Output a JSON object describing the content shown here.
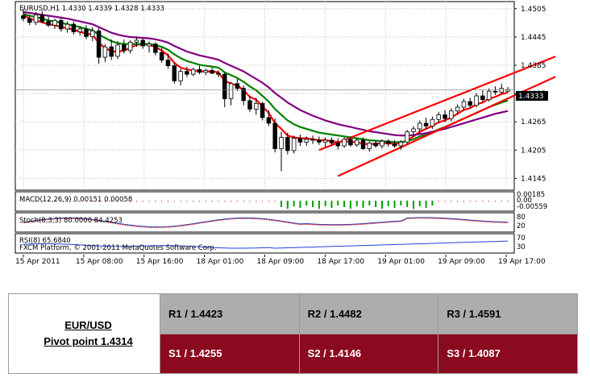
{
  "chart_data": {
    "type": "candlestick",
    "symbol_line": "EURUSD,H1  1.4330 1.4339 1.4328 1.4333",
    "price_label": "1.4333",
    "ylim": [
      1.412,
      1.452
    ],
    "y_ticks": [
      "1.4505",
      "1.4445",
      "1.4385",
      "1.4325",
      "1.4265",
      "1.4205",
      "1.4145"
    ],
    "x_ticks": [
      "15 Apr 2011",
      "15 Apr 08:00",
      "15 Apr 16:00",
      "18 Apr 01:00",
      "18 Apr 09:00",
      "18 Apr 17:00",
      "19 Apr 01:00",
      "19 Apr 09:00",
      "19 Apr 17:00"
    ],
    "candles": [
      [
        1.449,
        1.4505,
        1.4478,
        1.4484
      ],
      [
        1.4484,
        1.4492,
        1.447,
        1.4476
      ],
      [
        1.4476,
        1.4498,
        1.447,
        1.4492
      ],
      [
        1.4492,
        1.45,
        1.4474,
        1.4478
      ],
      [
        1.4478,
        1.4488,
        1.4466,
        1.447
      ],
      [
        1.447,
        1.4484,
        1.4462,
        1.448
      ],
      [
        1.448,
        1.4486,
        1.4456,
        1.4462
      ],
      [
        1.4462,
        1.4478,
        1.4454,
        1.4472
      ],
      [
        1.4472,
        1.4478,
        1.445,
        1.4456
      ],
      [
        1.4456,
        1.4468,
        1.4448,
        1.4462
      ],
      [
        1.4462,
        1.447,
        1.444,
        1.4446
      ],
      [
        1.4446,
        1.4466,
        1.4436,
        1.4458
      ],
      [
        1.4458,
        1.4464,
        1.4388,
        1.4402
      ],
      [
        1.4402,
        1.443,
        1.4392,
        1.4424
      ],
      [
        1.4424,
        1.444,
        1.4396,
        1.4404
      ],
      [
        1.4404,
        1.4436,
        1.4398,
        1.4428
      ],
      [
        1.4428,
        1.444,
        1.441,
        1.4416
      ],
      [
        1.4416,
        1.4438,
        1.441,
        1.4434
      ],
      [
        1.4434,
        1.4446,
        1.4424,
        1.4438
      ],
      [
        1.4438,
        1.4442,
        1.442,
        1.4426
      ],
      [
        1.4426,
        1.4436,
        1.4412,
        1.443
      ],
      [
        1.443,
        1.4434,
        1.4406,
        1.4412
      ],
      [
        1.4412,
        1.4422,
        1.439,
        1.4396
      ],
      [
        1.4396,
        1.441,
        1.4378,
        1.4384
      ],
      [
        1.4384,
        1.439,
        1.4346,
        1.4352
      ],
      [
        1.4352,
        1.4378,
        1.4342,
        1.4372
      ],
      [
        1.4372,
        1.4382,
        1.436,
        1.4366
      ],
      [
        1.4366,
        1.438,
        1.4362,
        1.4376
      ],
      [
        1.4376,
        1.4384,
        1.4366,
        1.437
      ],
      [
        1.437,
        1.4378,
        1.4364,
        1.4374
      ],
      [
        1.4374,
        1.438,
        1.4366,
        1.4368
      ],
      [
        1.4368,
        1.4374,
        1.436,
        1.4366
      ],
      [
        1.4366,
        1.437,
        1.4296,
        1.4314
      ],
      [
        1.4314,
        1.435,
        1.43,
        1.4346
      ],
      [
        1.4346,
        1.4356,
        1.433,
        1.4336
      ],
      [
        1.4336,
        1.4342,
        1.43,
        1.431
      ],
      [
        1.431,
        1.432,
        1.4286,
        1.4292
      ],
      [
        1.4292,
        1.4316,
        1.428,
        1.4304
      ],
      [
        1.4304,
        1.4308,
        1.4268,
        1.4274
      ],
      [
        1.4274,
        1.429,
        1.4256,
        1.4262
      ],
      [
        1.4262,
        1.4272,
        1.42,
        1.4208
      ],
      [
        1.4208,
        1.4244,
        1.416,
        1.4232
      ],
      [
        1.4232,
        1.4242,
        1.4196,
        1.4204
      ],
      [
        1.4204,
        1.4236,
        1.4198,
        1.423
      ],
      [
        1.423,
        1.4238,
        1.4214,
        1.4222
      ],
      [
        1.4222,
        1.4234,
        1.4214,
        1.4228
      ],
      [
        1.4228,
        1.4236,
        1.4218,
        1.4226
      ],
      [
        1.4226,
        1.4234,
        1.4216,
        1.4222
      ],
      [
        1.4222,
        1.4232,
        1.4212,
        1.4226
      ],
      [
        1.4226,
        1.4232,
        1.4214,
        1.422
      ],
      [
        1.422,
        1.423,
        1.4206,
        1.4214
      ],
      [
        1.4214,
        1.4232,
        1.421,
        1.4228
      ],
      [
        1.4228,
        1.4234,
        1.4212,
        1.4216
      ],
      [
        1.4216,
        1.423,
        1.4212,
        1.4226
      ],
      [
        1.4226,
        1.4232,
        1.4206,
        1.4208
      ],
      [
        1.4208,
        1.4224,
        1.4202,
        1.422
      ],
      [
        1.422,
        1.4226,
        1.421,
        1.4214
      ],
      [
        1.4214,
        1.4228,
        1.4208,
        1.4224
      ],
      [
        1.4224,
        1.4228,
        1.4212,
        1.4218
      ],
      [
        1.4218,
        1.4226,
        1.421,
        1.4214
      ],
      [
        1.4214,
        1.4226,
        1.4206,
        1.4222
      ],
      [
        1.4222,
        1.4248,
        1.4218,
        1.4244
      ],
      [
        1.4244,
        1.4256,
        1.4236,
        1.425
      ],
      [
        1.425,
        1.4268,
        1.424,
        1.4262
      ],
      [
        1.4262,
        1.4274,
        1.425,
        1.4256
      ],
      [
        1.4256,
        1.4276,
        1.425,
        1.427
      ],
      [
        1.427,
        1.4286,
        1.4262,
        1.428
      ],
      [
        1.428,
        1.429,
        1.4264,
        1.4272
      ],
      [
        1.4272,
        1.4294,
        1.4266,
        1.4288
      ],
      [
        1.4288,
        1.4302,
        1.428,
        1.4296
      ],
      [
        1.4296,
        1.4314,
        1.4288,
        1.4308
      ],
      [
        1.4308,
        1.4316,
        1.4294,
        1.43
      ],
      [
        1.43,
        1.4326,
        1.4296,
        1.432
      ],
      [
        1.432,
        1.4332,
        1.4306,
        1.4312
      ],
      [
        1.4312,
        1.4336,
        1.4308,
        1.433
      ],
      [
        1.433,
        1.434,
        1.4322,
        1.4328
      ],
      [
        1.4328,
        1.4346,
        1.4324,
        1.4336
      ],
      [
        1.433,
        1.4339,
        1.4328,
        1.4333
      ]
    ],
    "ma": [
      {
        "color": "#ff0000",
        "values": [
          1.4492,
          1.4484,
          1.448,
          1.4476,
          1.4472,
          1.447,
          1.4466,
          1.4464,
          1.446,
          1.4456,
          1.4452,
          1.445,
          1.4432,
          1.4422,
          1.4414,
          1.4414,
          1.4416,
          1.4422,
          1.4428,
          1.443,
          1.4428,
          1.4424,
          1.4416,
          1.4406,
          1.439,
          1.438,
          1.4376,
          1.4374,
          1.4372,
          1.4372,
          1.4372,
          1.437,
          1.4352,
          1.4346,
          1.4342,
          1.4332,
          1.4318,
          1.4312,
          1.4298,
          1.4284,
          1.4262,
          1.425,
          1.4236,
          1.4232,
          1.423,
          1.423,
          1.4228,
          1.4226,
          1.4226,
          1.4224,
          1.4222,
          1.4224,
          1.4222,
          1.4222,
          1.4218,
          1.4218,
          1.4218,
          1.422,
          1.422,
          1.4218,
          1.422,
          1.4226,
          1.4234,
          1.4244,
          1.425,
          1.4256,
          1.4264,
          1.4268,
          1.4274,
          1.4282,
          1.429,
          1.4294,
          1.4302,
          1.4306,
          1.4314,
          1.4318,
          1.4324,
          1.4327
        ]
      },
      {
        "color": "#008000",
        "values": [
          1.4494,
          1.449,
          1.4487,
          1.4484,
          1.448,
          1.4478,
          1.4475,
          1.4472,
          1.4469,
          1.4466,
          1.4462,
          1.4459,
          1.445,
          1.4443,
          1.4436,
          1.4432,
          1.443,
          1.443,
          1.443,
          1.443,
          1.443,
          1.4428,
          1.4424,
          1.4418,
          1.4408,
          1.44,
          1.4394,
          1.439,
          1.4386,
          1.4384,
          1.4382,
          1.438,
          1.437,
          1.4364,
          1.4358,
          1.435,
          1.434,
          1.4332,
          1.432,
          1.4308,
          1.4292,
          1.428,
          1.4268,
          1.426,
          1.4254,
          1.425,
          1.4246,
          1.4242,
          1.424,
          1.4238,
          1.4236,
          1.4234,
          1.4232,
          1.423,
          1.4228,
          1.4226,
          1.4225,
          1.4224,
          1.4223,
          1.4222,
          1.4222,
          1.4224,
          1.4228,
          1.4234,
          1.4238,
          1.4243,
          1.4249,
          1.4254,
          1.426,
          1.4266,
          1.4272,
          1.4278,
          1.4284,
          1.429,
          1.4296,
          1.4301,
          1.4306,
          1.431
        ]
      },
      {
        "color": "#800080",
        "values": [
          1.4498,
          1.4496,
          1.4494,
          1.4492,
          1.449,
          1.4488,
          1.4486,
          1.4484,
          1.4481,
          1.4478,
          1.4475,
          1.4472,
          1.4466,
          1.446,
          1.4454,
          1.445,
          1.4447,
          1.4445,
          1.4444,
          1.4443,
          1.4442,
          1.444,
          1.4437,
          1.4433,
          1.4426,
          1.442,
          1.4414,
          1.441,
          1.4406,
          1.4403,
          1.44,
          1.4397,
          1.439,
          1.4384,
          1.4378,
          1.4372,
          1.4364,
          1.4356,
          1.4348,
          1.4338,
          1.4326,
          1.4316,
          1.4306,
          1.4298,
          1.429,
          1.4284,
          1.4278,
          1.4273,
          1.4268,
          1.4264,
          1.426,
          1.4257,
          1.4254,
          1.4251,
          1.4248,
          1.4245,
          1.4243,
          1.4241,
          1.4239,
          1.4237,
          1.4236,
          1.4236,
          1.4237,
          1.4239,
          1.4241,
          1.4244,
          1.4247,
          1.425,
          1.4254,
          1.4258,
          1.4262,
          1.4266,
          1.427,
          1.4274,
          1.4278,
          1.4282,
          1.4285,
          1.4288
        ]
      }
    ],
    "trendlines": [
      {
        "x1": 47,
        "y1": 1.4205,
        "x2": 82,
        "y2": 1.439
      },
      {
        "x1": 50,
        "y1": 1.415,
        "x2": 82,
        "y2": 1.4345
      }
    ],
    "macd": {
      "label": "MACD(12,26,9) 0.00151 0.00058",
      "ticks": [
        "0.00185",
        "0.00",
        "-0.00559"
      ]
    },
    "stoch": {
      "label": "Stoch(8,3,3) 80.0000 84.4253",
      "ticks": [
        "80",
        "20"
      ]
    },
    "rsi": {
      "label": "RSI(8) 65.6840",
      "ticks": [
        "70",
        "30"
      ]
    },
    "watermark": "FXCM Platform, © 2001-2011 MetaQuotes Software Corp."
  },
  "pivot_table": {
    "pair": "EUR/USD",
    "pivot": "Pivot point 1.4314",
    "r1": "R1 / 1.4423",
    "r2": "R2 / 1.4482",
    "r3": "R3 / 1.4591",
    "s1": "S1 / 1.4255",
    "s2": "S2 / 1.4146",
    "s3": "S3 / 1.4087",
    "colors": {
      "resistance": "#adadad",
      "support": "#8b0a1f"
    }
  }
}
